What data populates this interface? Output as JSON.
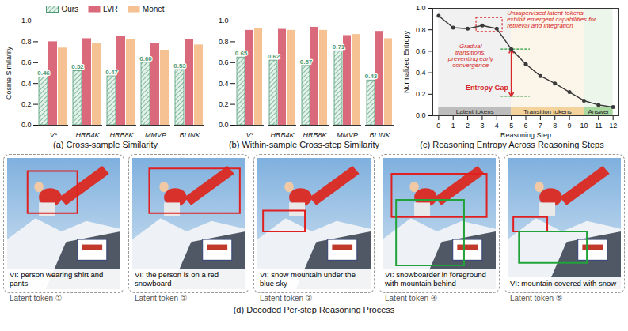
{
  "chart_data": [
    {
      "type": "bar",
      "title": "(a) Cross-sample Similarity",
      "ylabel": "Cosine Similarity",
      "categories": [
        "V*",
        "HRB4K",
        "HRB8K",
        "MMVP",
        "BLINK"
      ],
      "series": [
        {
          "name": "Ours",
          "color": "#4e9a74",
          "values": [
            0.46,
            0.52,
            0.47,
            0.6,
            0.53
          ],
          "value_labels": [
            "0.46",
            "0.52",
            "0.47",
            "0.60",
            "0.53"
          ],
          "data_labels": true
        },
        {
          "name": "LVR",
          "color": "#d9697b",
          "values": [
            0.8,
            0.83,
            0.85,
            0.78,
            0.82
          ]
        },
        {
          "name": "Monet",
          "color": "#f6c193",
          "values": [
            0.74,
            0.78,
            0.82,
            0.72,
            0.77
          ]
        }
      ],
      "ylim": [
        0,
        1.0
      ],
      "yticks": [
        {
          "value": 0,
          "label": "0.0"
        },
        0.2,
        0.4,
        0.6,
        0.8,
        {
          "value": 1.0,
          "label": "1.0"
        }
      ],
      "grid": false,
      "legend": "top"
    },
    {
      "type": "bar",
      "title": "(b) Within-sample Cross-step Similarity",
      "categories": [
        "V*",
        "HRB4K",
        "HRB8K",
        "MMVP",
        "BLINK"
      ],
      "series": [
        {
          "name": "Ours",
          "color": "#4e9a74",
          "values": [
            0.65,
            0.62,
            0.57,
            0.71,
            0.43
          ],
          "value_labels": [
            "0.65",
            "0.62",
            "0.57",
            "0.71",
            "0.43"
          ],
          "data_labels": true
        },
        {
          "name": "LVR",
          "color": "#d9697b",
          "values": [
            0.91,
            0.92,
            0.94,
            0.86,
            0.9
          ]
        },
        {
          "name": "Monet",
          "color": "#f6c193",
          "values": [
            0.93,
            0.91,
            0.91,
            0.87,
            0.83
          ]
        }
      ],
      "ylim": [
        0,
        1.0
      ],
      "yticks": [
        {
          "value": 0,
          "label": "0.0"
        },
        0.2,
        0.4,
        0.6,
        0.8,
        {
          "value": 1.0,
          "label": "1.0"
        }
      ],
      "grid": false
    },
    {
      "type": "line",
      "title": "(c) Reasoning Entropy Across Reasoning Steps",
      "xlabel": "Reasoning Step",
      "ylabel": "Normalized Entropy",
      "x": [
        0,
        1,
        2,
        3,
        4,
        5,
        6,
        7,
        8,
        9,
        10,
        11,
        12
      ],
      "values": [
        0.93,
        0.82,
        0.81,
        0.84,
        0.81,
        0.62,
        0.48,
        0.37,
        0.3,
        0.22,
        0.14,
        0.1,
        0.08
      ],
      "color": "#3a3a3a",
      "marker": "circle",
      "xlim": [
        -0.4,
        12.4
      ],
      "xticks": [
        0,
        1,
        2,
        3,
        4,
        5,
        6,
        7,
        8,
        9,
        10,
        11,
        12
      ],
      "ylim": [
        0,
        1.0
      ],
      "yticks": [
        {
          "value": 0,
          "label": "0.0"
        },
        0.2,
        0.4,
        0.6,
        0.8,
        {
          "value": 1.0,
          "label": "1.0"
        }
      ],
      "grid": false,
      "phases": [
        {
          "label": "Latent tokens",
          "x": [
            0,
            5
          ],
          "color": "#bdbdbd"
        },
        {
          "label": "Transition tokens",
          "x": [
            5,
            10
          ],
          "color": "#f3d29c"
        },
        {
          "label": "Answer",
          "x": [
            10,
            12
          ],
          "color": "#a9d8a0"
        }
      ],
      "annotations": [
        {
          "text": "Unsupervised latent tokens exhibit emergent capabilities for retrieval and integration",
          "box_x": [
            2.6,
            4.4
          ],
          "box_y": [
            0.78,
            0.91
          ]
        },
        {
          "text": "Gradual transitions, preventing early convergence"
        },
        {
          "text": "Entropy Gap",
          "x": 5,
          "y": [
            0.62,
            0.18
          ]
        }
      ]
    }
  ],
  "panel_d": {
    "caption": "(d) Decoded Per-step Reasoning Process",
    "panels": [
      {
        "label": "Latent token ①",
        "text": "VI: person wearing shirt and pants"
      },
      {
        "label": "Latent token ②",
        "text": "VI: the person is on a red snowboard"
      },
      {
        "label": "Latent token ③",
        "text": "VI: snow mountain under the blue sky"
      },
      {
        "label": "Latent token ④",
        "text": "VI: snowboarder in foreground with mountain behind"
      },
      {
        "label": "Latent token ⑤",
        "text": "VI: mountain covered with snow"
      }
    ]
  }
}
